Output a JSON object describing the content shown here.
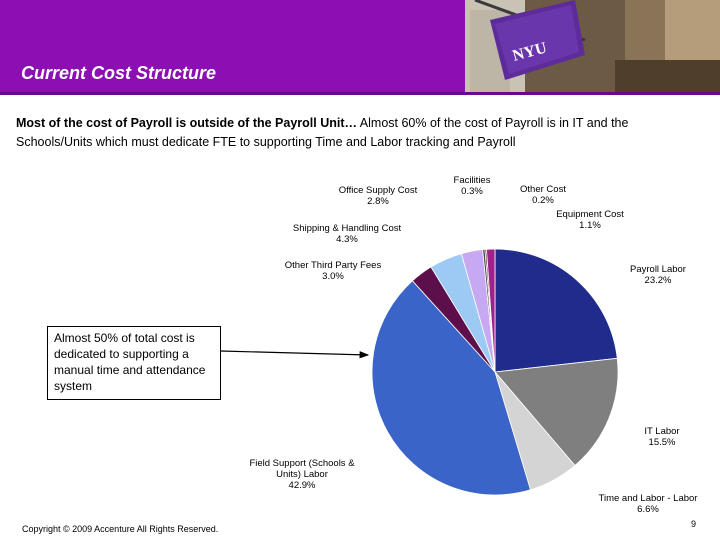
{
  "header": {
    "title": "Current Cost Structure",
    "brand_color": "#8b0fb2",
    "flag_text": "NYU"
  },
  "subtitle": {
    "bold": "Most of the cost of Payroll is outside of the Payroll Unit…",
    "normal": " Almost 60% of the cost of Payroll is in IT and the Schools/Units which must dedicate FTE to supporting Time and Labor tracking and Payroll"
  },
  "callout": {
    "text": "Almost 50% of total cost is dedicated to supporting a manual time and attendance system"
  },
  "chart_data": {
    "type": "pie",
    "title": "",
    "slices": [
      {
        "label": "Payroll Labor",
        "value_label": "23.2%",
        "value": 23.2,
        "color": "#1f2c8c"
      },
      {
        "label": "IT Labor",
        "value_label": "15.5%",
        "value": 15.5,
        "color": "#7f7f7f"
      },
      {
        "label": "Time and Labor  - Labor",
        "value_label": "6.6%",
        "value": 6.6,
        "color": "#d4d4d4"
      },
      {
        "label": "Field Support (Schools & Units) Labor",
        "value_label": "42.9%",
        "value": 42.9,
        "color": "#3a64c8"
      },
      {
        "label": "Other Third Party Fees",
        "value_label": "3.0%",
        "value": 3.0,
        "color": "#5c0f4a"
      },
      {
        "label": "Shipping & Handling Cost",
        "value_label": "4.3%",
        "value": 4.3,
        "color": "#9ccaf5"
      },
      {
        "label": "Office Supply Cost",
        "value_label": "2.8%",
        "value": 2.8,
        "color": "#c7a8f2"
      },
      {
        "label": "Facilities",
        "value_label": "0.3%",
        "value": 0.3,
        "color": "#4a4a4a"
      },
      {
        "label": "Other Cost",
        "value_label": "0.2%",
        "value": 0.2,
        "color": "#6b1010"
      },
      {
        "label": "Equipment Cost",
        "value_label": "1.1%",
        "value": 1.1,
        "color": "#a0208c"
      }
    ]
  },
  "footer": {
    "copyright": "Copyright © 2009 Accenture All Rights Reserved.",
    "page": "9"
  }
}
